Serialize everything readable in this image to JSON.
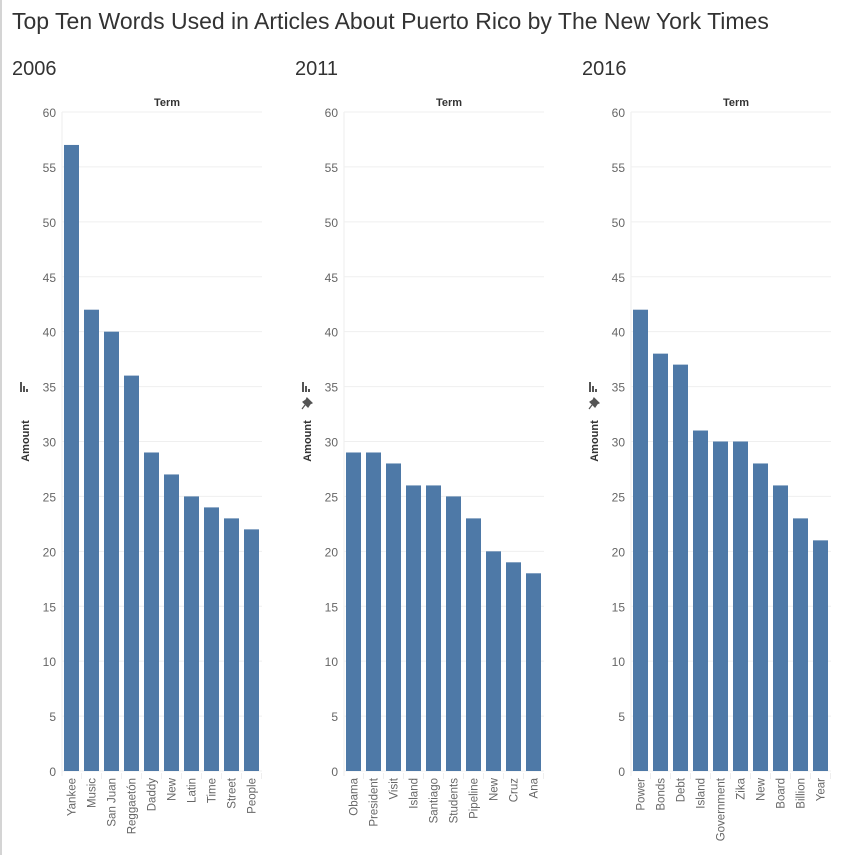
{
  "title": "Top Ten Words Used in Articles About Puerto Rico by The New York Times",
  "chart_data": [
    {
      "type": "bar",
      "title": "2006",
      "xlabel": "Term",
      "ylabel": "Amount",
      "ylim": [
        0,
        60
      ],
      "yticks": [
        0,
        5,
        10,
        15,
        20,
        25,
        30,
        35,
        40,
        45,
        50,
        55,
        60
      ],
      "grid": true,
      "color": "#4e79a7",
      "categories": [
        "Yankee",
        "Music",
        "San Juan",
        "Reggaetón",
        "Daddy",
        "New",
        "Latin",
        "Time",
        "Street",
        "People"
      ],
      "values": [
        57,
        42,
        40,
        36,
        29,
        27,
        25,
        24,
        23,
        22
      ],
      "icons": [
        "sort-icon"
      ]
    },
    {
      "type": "bar",
      "title": "2011",
      "xlabel": "Term",
      "ylabel": "Amount",
      "ylim": [
        0,
        60
      ],
      "yticks": [
        0,
        5,
        10,
        15,
        20,
        25,
        30,
        35,
        40,
        45,
        50,
        55,
        60
      ],
      "grid": true,
      "color": "#4e79a7",
      "categories": [
        "Obama",
        "President",
        "Visit",
        "Island",
        "Santiago",
        "Students",
        "Pipeline",
        "New",
        "Cruz",
        "Ana"
      ],
      "values": [
        29,
        29,
        28,
        26,
        26,
        25,
        23,
        20,
        19,
        18
      ],
      "icons": [
        "sort-icon",
        "pin-icon"
      ]
    },
    {
      "type": "bar",
      "title": "2016",
      "xlabel": "Term",
      "ylabel": "Amount",
      "ylim": [
        0,
        60
      ],
      "yticks": [
        0,
        5,
        10,
        15,
        20,
        25,
        30,
        35,
        40,
        45,
        50,
        55,
        60
      ],
      "grid": true,
      "color": "#4e79a7",
      "categories": [
        "Power",
        "Bonds",
        "Debt",
        "Island",
        "Government",
        "Zika",
        "New",
        "Board",
        "Billion",
        "Year"
      ],
      "values": [
        42,
        38,
        37,
        31,
        30,
        30,
        28,
        26,
        23,
        21
      ],
      "icons": [
        "sort-icon",
        "pin-icon"
      ]
    }
  ]
}
